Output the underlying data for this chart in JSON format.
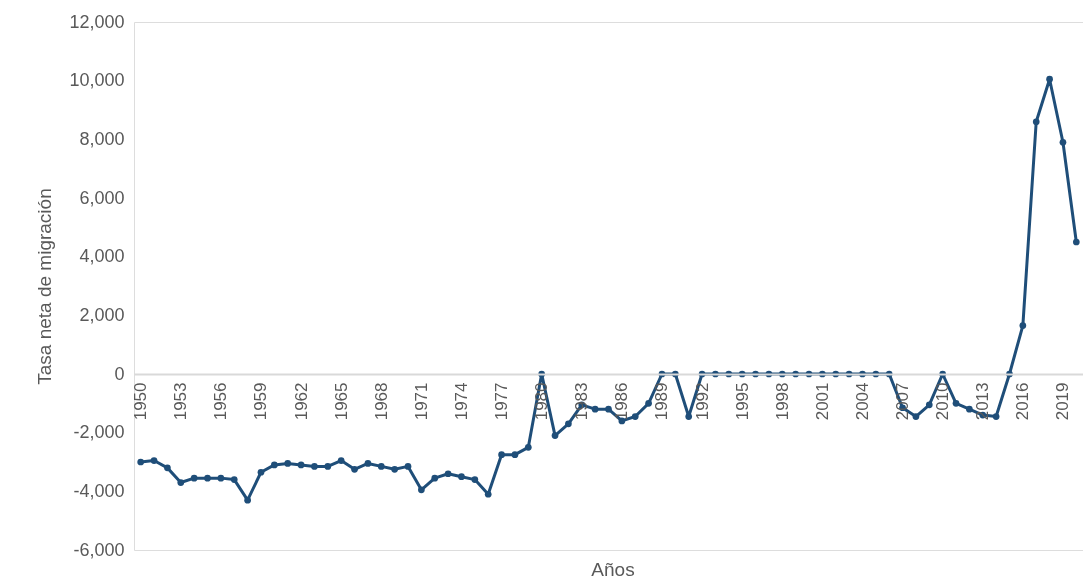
{
  "chart_data": {
    "type": "line",
    "xlabel": "Años",
    "ylabel": "Tasa neta de migración",
    "x": [
      1950,
      1951,
      1952,
      1953,
      1954,
      1955,
      1956,
      1957,
      1958,
      1959,
      1960,
      1961,
      1962,
      1963,
      1964,
      1965,
      1966,
      1967,
      1968,
      1969,
      1970,
      1971,
      1972,
      1973,
      1974,
      1975,
      1976,
      1977,
      1978,
      1979,
      1980,
      1981,
      1982,
      1983,
      1984,
      1985,
      1986,
      1987,
      1988,
      1989,
      1990,
      1991,
      1992,
      1993,
      1994,
      1995,
      1996,
      1997,
      1998,
      1999,
      2000,
      2001,
      2002,
      2003,
      2004,
      2005,
      2006,
      2007,
      2008,
      2009,
      2010,
      2011,
      2012,
      2013,
      2014,
      2015,
      2016,
      2017,
      2018,
      2019,
      2020
    ],
    "series": [
      {
        "color": "#1f4e79",
        "values": [
          -3000,
          -2950,
          -3200,
          -3700,
          -3550,
          -3550,
          -3550,
          -3600,
          -4300,
          -3350,
          -3100,
          -3050,
          -3100,
          -3150,
          -3150,
          -2950,
          -3250,
          -3050,
          -3150,
          -3250,
          -3150,
          -3950,
          -3550,
          -3400,
          -3500,
          -3600,
          -4100,
          -2750,
          -2750,
          -2500,
          0,
          -2100,
          -1700,
          -1050,
          -1200,
          -1200,
          -1600,
          -1450,
          -1000,
          0,
          0,
          -1450,
          0,
          0,
          0,
          0,
          0,
          0,
          0,
          0,
          0,
          0,
          0,
          0,
          0,
          0,
          0,
          -1150,
          -1450,
          -1050,
          0,
          -1000,
          -1200,
          -1400,
          -1450,
          0,
          1650,
          8600,
          10050,
          7900,
          4500
        ]
      }
    ],
    "xlim": [
      1949.5,
      2020.5
    ],
    "xticks": [
      1950,
      1953,
      1956,
      1959,
      1962,
      1965,
      1968,
      1971,
      1974,
      1977,
      1980,
      1983,
      1986,
      1989,
      1992,
      1995,
      1998,
      2001,
      2004,
      2007,
      2010,
      2013,
      2016,
      2019
    ],
    "ylim": [
      -6000,
      12000
    ],
    "yticks": [
      {
        "value": -6000,
        "label": "-6,000"
      },
      {
        "value": -4000,
        "label": "-4,000"
      },
      {
        "value": -2000,
        "label": "-2,000"
      },
      {
        "value": 0,
        "label": "0"
      },
      {
        "value": 2000,
        "label": "2,000"
      },
      {
        "value": 4000,
        "label": "4,000"
      },
      {
        "value": 6000,
        "label": "6,000"
      },
      {
        "value": 8000,
        "label": "8,000"
      },
      {
        "value": 10000,
        "label": "10,000"
      },
      {
        "value": 12000,
        "label": "12,000"
      }
    ],
    "grid": false,
    "marker": "circle",
    "line_style": "solid"
  }
}
